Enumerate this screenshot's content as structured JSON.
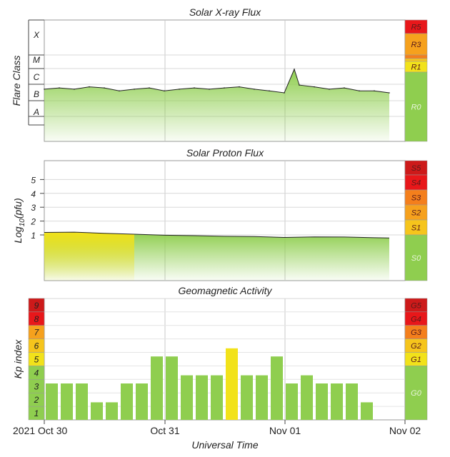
{
  "x_axis": {
    "label": "Universal Time",
    "ticks": [
      "2021 Oct 30",
      "Oct 31",
      "Nov 01",
      "Nov 02"
    ]
  },
  "colors": {
    "green": "#8fce4f",
    "yellow": "#f2e21a",
    "gold": "#f6c51c",
    "orange": "#f6a11d",
    "dark_orange": "#f47f1c",
    "red": "#e8171a",
    "dark_red": "#cd1a1a"
  },
  "chart_data": [
    {
      "type": "area",
      "title": "Solar X-ray Flux",
      "ylabel": "Flare Class",
      "y_levels": [
        "A",
        "B",
        "C",
        "M",
        "X"
      ],
      "scale": [
        "R0",
        "R1",
        "R3",
        "R5"
      ],
      "x_range_days": [
        "2021-10-30",
        "2021-11-02"
      ],
      "x": [
        "2021-10-30 00:00",
        "2021-10-30 03:00",
        "2021-10-30 06:00",
        "2021-10-30 09:00",
        "2021-10-30 12:00",
        "2021-10-30 15:00",
        "2021-10-30 18:00",
        "2021-10-30 21:00",
        "2021-10-31 00:00",
        "2021-10-31 03:00",
        "2021-10-31 06:00",
        "2021-10-31 09:00",
        "2021-10-31 12:00",
        "2021-10-31 15:00",
        "2021-10-31 18:00",
        "2021-10-31 21:00",
        "2021-11-01 00:00",
        "2021-11-01 02:00",
        "2021-11-01 03:00",
        "2021-11-01 06:00",
        "2021-11-01 09:00",
        "2021-11-01 12:00",
        "2021-11-01 15:00",
        "2021-11-01 18:00",
        "2021-11-01 21:00"
      ],
      "values": [
        "B5",
        "B6",
        "B5",
        "B7",
        "B6",
        "B4",
        "B5",
        "B6",
        "B4",
        "B5",
        "B6",
        "B5",
        "B6",
        "B7",
        "B5",
        "B4",
        "B3",
        "C9",
        "B9",
        "B7",
        "B5",
        "B6",
        "B4",
        "B4",
        "B3"
      ]
    },
    {
      "type": "area",
      "title": "Solar Proton Flux",
      "ylabel": "Log10(pfu)",
      "ylabel_main": "Log",
      "ylabel_sub": "10",
      "ylabel_tail": "(pfu)",
      "yticks": [
        "1",
        "2",
        "3",
        "4",
        "5"
      ],
      "scale": [
        "S0",
        "S1",
        "S2",
        "S3",
        "S4",
        "S5"
      ],
      "x": [
        "2021-10-30 00:00",
        "2021-10-30 06:00",
        "2021-10-30 12:00",
        "2021-10-30 18:00",
        "2021-10-31 00:00",
        "2021-10-31 06:00",
        "2021-10-31 12:00",
        "2021-10-31 18:00",
        "2021-11-01 00:00",
        "2021-11-01 06:00",
        "2021-11-01 12:00",
        "2021-11-01 18:00",
        "2021-11-01 21:00"
      ],
      "values": [
        1.18,
        1.2,
        1.12,
        1.05,
        0.98,
        0.95,
        0.9,
        0.88,
        0.82,
        0.86,
        0.85,
        0.8,
        0.78
      ]
    },
    {
      "type": "bar",
      "title": "Geomagnetic Activity",
      "ylabel": "Kp index",
      "yticks": [
        "1",
        "2",
        "3",
        "4",
        "5",
        "6",
        "7",
        "8",
        "9"
      ],
      "scale": [
        "G0",
        "G1",
        "G2",
        "G3",
        "G4",
        "G5"
      ],
      "x": [
        "2021-10-30 00:00",
        "2021-10-30 03:00",
        "2021-10-30 06:00",
        "2021-10-30 09:00",
        "2021-10-30 12:00",
        "2021-10-30 15:00",
        "2021-10-30 18:00",
        "2021-10-30 21:00",
        "2021-10-31 00:00",
        "2021-10-31 03:00",
        "2021-10-31 06:00",
        "2021-10-31 09:00",
        "2021-10-31 12:00",
        "2021-10-31 15:00",
        "2021-10-31 18:00",
        "2021-10-31 21:00",
        "2021-11-01 00:00",
        "2021-11-01 03:00",
        "2021-11-01 06:00",
        "2021-11-01 09:00",
        "2021-11-01 12:00",
        "2021-11-01 15:00"
      ],
      "values": [
        2.7,
        2.7,
        2.7,
        1.3,
        1.3,
        2.7,
        2.7,
        4.7,
        4.7,
        3.3,
        3.3,
        3.3,
        5.3,
        3.3,
        3.3,
        4.7,
        2.7,
        3.3,
        2.7,
        2.7,
        2.7,
        1.3
      ]
    }
  ]
}
